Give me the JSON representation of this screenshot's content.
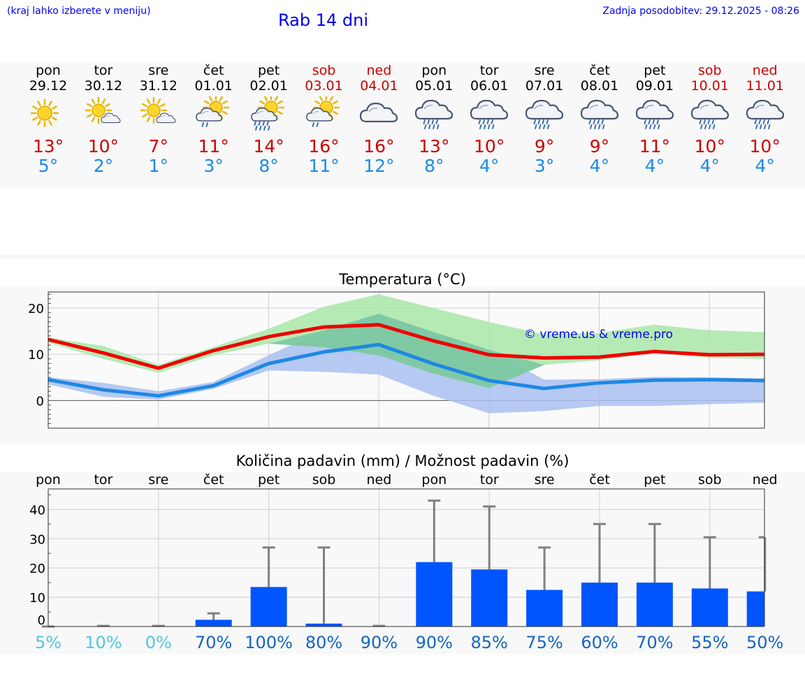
{
  "header": {
    "left_note": "(kraj lahko izberete v meniju)",
    "title": "Rab 14 dni",
    "updated": "Zadnja posodobitev: 29.12.2025 - 08:26"
  },
  "colors": {
    "max_temp": "#ee0000",
    "min_temp": "#1e88e5",
    "bar": "#0055ff",
    "band_max": "#a8e6a8",
    "band_min": "#a8c0f0",
    "watermark": "#0000ee"
  },
  "days": [
    {
      "name": "pon",
      "date": "29.12",
      "weekend": false,
      "icon": "sun-icon",
      "max": "13°",
      "min": "5°"
    },
    {
      "name": "tor",
      "date": "30.12",
      "weekend": false,
      "icon": "sun-cloud-icon",
      "max": "10°",
      "min": "2°"
    },
    {
      "name": "sre",
      "date": "31.12",
      "weekend": false,
      "icon": "sun-cloud-icon",
      "max": "7°",
      "min": "1°"
    },
    {
      "name": "čet",
      "date": "01.01",
      "weekend": false,
      "icon": "sun-rain-icon",
      "max": "11°",
      "min": "3°"
    },
    {
      "name": "pet",
      "date": "02.01",
      "weekend": false,
      "icon": "sun-heavy-rain-icon",
      "max": "14°",
      "min": "8°"
    },
    {
      "name": "sob",
      "date": "03.01",
      "weekend": true,
      "icon": "sun-rain-icon",
      "max": "16°",
      "min": "11°"
    },
    {
      "name": "ned",
      "date": "04.01",
      "weekend": true,
      "icon": "cloud-icon",
      "max": "16°",
      "min": "12°"
    },
    {
      "name": "pon",
      "date": "05.01",
      "weekend": false,
      "icon": "cloud-rain-icon",
      "max": "13°",
      "min": "8°"
    },
    {
      "name": "tor",
      "date": "06.01",
      "weekend": false,
      "icon": "cloud-rain-icon",
      "max": "10°",
      "min": "4°"
    },
    {
      "name": "sre",
      "date": "07.01",
      "weekend": false,
      "icon": "cloud-rain-icon",
      "max": "9°",
      "min": "3°"
    },
    {
      "name": "čet",
      "date": "08.01",
      "weekend": false,
      "icon": "cloud-rain-icon",
      "max": "9°",
      "min": "4°"
    },
    {
      "name": "pet",
      "date": "09.01",
      "weekend": false,
      "icon": "cloud-rain-icon",
      "max": "11°",
      "min": "4°"
    },
    {
      "name": "sob",
      "date": "10.01",
      "weekend": true,
      "icon": "cloud-rain-icon",
      "max": "10°",
      "min": "4°"
    },
    {
      "name": "ned",
      "date": "11.01",
      "weekend": true,
      "icon": "cloud-rain-icon",
      "max": "10°",
      "min": "4°"
    }
  ],
  "chart_data": [
    {
      "type": "line",
      "title": "Temperatura (°C)",
      "watermark": "© vreme.us & vreme.pro",
      "x": [
        0,
        1,
        2,
        3,
        4,
        5,
        6,
        7,
        8,
        9,
        10,
        11,
        12,
        13
      ],
      "ylim": [
        -6,
        23.5
      ],
      "yticks": [
        0,
        10,
        20
      ],
      "series": [
        {
          "name": "max",
          "values": [
            13.2,
            10.3,
            7.0,
            10.8,
            13.8,
            15.9,
            16.4,
            12.9,
            9.9,
            9.2,
            9.4,
            10.6,
            9.9,
            10.0
          ]
        },
        {
          "name": "min",
          "values": [
            4.5,
            2.3,
            1.0,
            3.2,
            8.0,
            10.5,
            12.1,
            7.9,
            4.3,
            2.6,
            3.8,
            4.4,
            4.5,
            4.3
          ]
        },
        {
          "name": "max_upper",
          "values": [
            13.6,
            11.8,
            7.7,
            11.6,
            15.5,
            20.3,
            23.0,
            20.0,
            17.0,
            14.3,
            14.6,
            16.4,
            15.2,
            14.8
          ]
        },
        {
          "name": "max_lower",
          "values": [
            12.5,
            9.0,
            6.0,
            9.8,
            12.3,
            11.5,
            9.8,
            5.8,
            2.7,
            7.7,
            8.7,
            10.3,
            9.2,
            9.0
          ]
        },
        {
          "name": "min_upper",
          "values": [
            5.0,
            3.8,
            2.0,
            4.0,
            9.8,
            15.2,
            18.8,
            14.8,
            11.0,
            4.5,
            4.6,
            5.1,
            5.0,
            4.8
          ]
        },
        {
          "name": "min_lower",
          "values": [
            3.5,
            0.8,
            0.2,
            2.5,
            6.5,
            6.2,
            5.6,
            1.0,
            -2.8,
            -2.3,
            -1.2,
            -1.2,
            -0.8,
            -0.5
          ]
        }
      ]
    },
    {
      "type": "bar",
      "title": "Količina padavin (mm) / Možnost padavin (%)",
      "categories": [
        "pon",
        "tor",
        "sre",
        "čet",
        "pet",
        "sob",
        "ned",
        "pon",
        "tor",
        "sre",
        "čet",
        "pet",
        "sob",
        "ned"
      ],
      "ylim": [
        0,
        47
      ],
      "yticks": [
        0,
        10,
        20,
        30,
        40
      ],
      "values": [
        0,
        0,
        0,
        2.3,
        13.5,
        1.0,
        0,
        22,
        19.5,
        12.5,
        15,
        15,
        13,
        12
      ],
      "error_upper": [
        0,
        0.2,
        0.2,
        4.5,
        27,
        27,
        0.2,
        43,
        41,
        27,
        35,
        35,
        30.5,
        30.5
      ],
      "probability": [
        "5%",
        "10%",
        "0%",
        "70%",
        "100%",
        "80%",
        "90%",
        "90%",
        "85%",
        "75%",
        "60%",
        "70%",
        "55%",
        "50%"
      ],
      "prob_color": [
        "#4fc8e0",
        "#4fc8e0",
        "#4fc8e0",
        "#1565c0",
        "#1565c0",
        "#1565c0",
        "#1565c0",
        "#1565c0",
        "#1565c0",
        "#1565c0",
        "#1565c0",
        "#1565c0",
        "#1565c0",
        "#1565c0"
      ]
    }
  ]
}
